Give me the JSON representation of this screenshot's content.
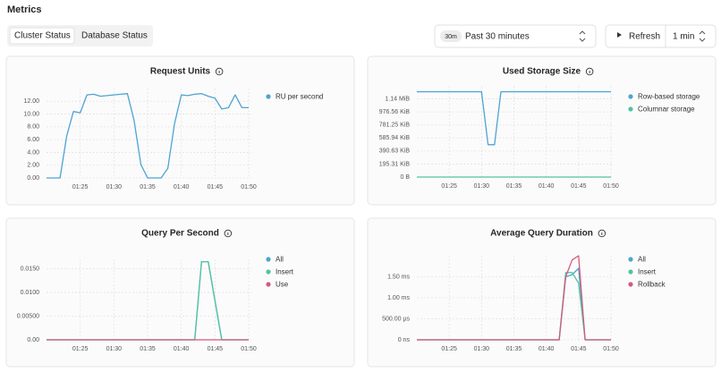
{
  "header": {
    "title": "Metrics"
  },
  "tabs": [
    "Cluster Status",
    "Database Status"
  ],
  "time_range": {
    "badge": "30m",
    "label": "Past 30 minutes"
  },
  "refresh": {
    "label": "Refresh",
    "interval": "1 min"
  },
  "chart_data": [
    {
      "type": "line",
      "title": "Request Units",
      "x": [
        "01:20",
        "01:21",
        "01:22",
        "01:23",
        "01:24",
        "01:25",
        "01:26",
        "01:27",
        "01:28",
        "01:29",
        "01:30",
        "01:31",
        "01:32",
        "01:33",
        "01:34",
        "01:35",
        "01:36",
        "01:37",
        "01:38",
        "01:39",
        "01:40",
        "01:41",
        "01:42",
        "01:43",
        "01:44",
        "01:45",
        "01:46",
        "01:47",
        "01:48",
        "01:49",
        "01:50"
      ],
      "xlim": [
        "01:20",
        "01:50"
      ],
      "xticks": [
        "01:25",
        "01:30",
        "01:35",
        "01:40",
        "01:45",
        "01:50"
      ],
      "ylim": [
        0,
        14
      ],
      "yticks": [
        {
          "value": 0,
          "label": "0.00"
        },
        {
          "value": 2,
          "label": "2.00"
        },
        {
          "value": 4,
          "label": "4.00"
        },
        {
          "value": 6,
          "label": "6.00"
        },
        {
          "value": 8,
          "label": "8.00"
        },
        {
          "value": 10,
          "label": "10.00"
        },
        {
          "value": 12,
          "label": "12.00"
        }
      ],
      "grid": true,
      "series": [
        {
          "name": "RU per second",
          "color": "#4ea3d3",
          "values": [
            0,
            0,
            0,
            6.6,
            10.4,
            10.2,
            13,
            13.1,
            12.8,
            12.9,
            13,
            13.1,
            13.2,
            9,
            2.1,
            0,
            0,
            0,
            1.5,
            8.5,
            13,
            12.9,
            13.1,
            13.2,
            12.8,
            12.5,
            10.8,
            11,
            13,
            11,
            11
          ]
        }
      ]
    },
    {
      "type": "line",
      "title": "Used Storage Size",
      "x": [
        "01:20",
        "01:21",
        "01:22",
        "01:23",
        "01:24",
        "01:25",
        "01:26",
        "01:27",
        "01:28",
        "01:29",
        "01:30",
        "01:31",
        "01:32",
        "01:33",
        "01:34",
        "01:35",
        "01:36",
        "01:37",
        "01:38",
        "01:39",
        "01:40",
        "01:41",
        "01:42",
        "01:43",
        "01:44",
        "01:45",
        "01:46",
        "01:47",
        "01:48",
        "01:49",
        "01:50"
      ],
      "xlim": [
        "01:20",
        "01:50"
      ],
      "xticks": [
        "01:25",
        "01:30",
        "01:35",
        "01:40",
        "01:45",
        "01:50"
      ],
      "ylim": [
        0,
        1400000
      ],
      "yticks": [
        {
          "value": 0,
          "label": "0 B"
        },
        {
          "value": 200000,
          "label": "195.31 KiB"
        },
        {
          "value": 400000,
          "label": "390.63 KiB"
        },
        {
          "value": 600000,
          "label": "585.94 KiB"
        },
        {
          "value": 800000,
          "label": "781.25 KiB"
        },
        {
          "value": 1000000,
          "label": "976.56 KiB"
        },
        {
          "value": 1200000,
          "label": "1.14 MiB"
        }
      ],
      "grid": true,
      "series": [
        {
          "name": "Row-based storage",
          "color": "#4ea3d3",
          "values": [
            1310000,
            1310000,
            1310000,
            1310000,
            1310000,
            1310000,
            1310000,
            1310000,
            1310000,
            1310000,
            1310000,
            497000,
            497000,
            1310000,
            1310000,
            1310000,
            1310000,
            1310000,
            1310000,
            1310000,
            1310000,
            1310000,
            1310000,
            1310000,
            1310000,
            1310000,
            1310000,
            1310000,
            1310000,
            1310000,
            1310000
          ]
        },
        {
          "name": "Columnar storage",
          "color": "#52c3a0",
          "values": [
            0,
            0,
            0,
            0,
            0,
            0,
            0,
            0,
            0,
            0,
            0,
            0,
            0,
            0,
            0,
            0,
            0,
            0,
            0,
            0,
            0,
            0,
            0,
            0,
            0,
            0,
            0,
            0,
            0,
            0,
            0
          ]
        }
      ]
    },
    {
      "type": "line",
      "title": "Query Per Second",
      "x": [
        "01:20",
        "01:21",
        "01:22",
        "01:23",
        "01:24",
        "01:25",
        "01:26",
        "01:27",
        "01:28",
        "01:29",
        "01:30",
        "01:31",
        "01:32",
        "01:33",
        "01:34",
        "01:35",
        "01:36",
        "01:37",
        "01:38",
        "01:39",
        "01:40",
        "01:41",
        "01:42",
        "01:43",
        "01:44",
        "01:45",
        "01:46",
        "01:47",
        "01:48",
        "01:49",
        "01:50"
      ],
      "xlim": [
        "01:20",
        "01:50"
      ],
      "xticks": [
        "01:25",
        "01:30",
        "01:35",
        "01:40",
        "01:45",
        "01:50"
      ],
      "ylim": [
        0,
        0.017
      ],
      "yticks": [
        {
          "value": 0,
          "label": "0.00"
        },
        {
          "value": 0.005,
          "label": "0.00500"
        },
        {
          "value": 0.01,
          "label": "0.0100"
        },
        {
          "value": 0.015,
          "label": "0.0150"
        }
      ],
      "grid": true,
      "series": [
        {
          "name": "All",
          "color": "#4ea3d3",
          "values": [
            0,
            0,
            0,
            0,
            0,
            0,
            0,
            0,
            0,
            0,
            0,
            0,
            0,
            0,
            0,
            0,
            0,
            0,
            0,
            0,
            0,
            0,
            0,
            0.0165,
            0.0165,
            0.0083,
            0,
            0,
            0,
            0,
            0
          ]
        },
        {
          "name": "Insert",
          "color": "#52c3a0",
          "values": [
            0,
            0,
            0,
            0,
            0,
            0,
            0,
            0,
            0,
            0,
            0,
            0,
            0,
            0,
            0,
            0,
            0,
            0,
            0,
            0,
            0,
            0,
            0,
            0.0165,
            0.0165,
            0.0083,
            0,
            0,
            0,
            0,
            0
          ]
        },
        {
          "name": "Use",
          "color": "#d45a80",
          "values": [
            0,
            0,
            0,
            0,
            0,
            0,
            0,
            0,
            0,
            0,
            0,
            0,
            0,
            0,
            0,
            0,
            0,
            0,
            0,
            0,
            0,
            0,
            0,
            0,
            0,
            0,
            0,
            0,
            0,
            0,
            0
          ]
        }
      ]
    },
    {
      "type": "line",
      "title": "Average Query Duration",
      "x": [
        "01:20",
        "01:21",
        "01:22",
        "01:23",
        "01:24",
        "01:25",
        "01:26",
        "01:27",
        "01:28",
        "01:29",
        "01:30",
        "01:31",
        "01:32",
        "01:33",
        "01:34",
        "01:35",
        "01:36",
        "01:37",
        "01:38",
        "01:39",
        "01:40",
        "01:41",
        "01:42",
        "01:43",
        "01:44",
        "01:45",
        "01:46",
        "01:47",
        "01:48",
        "01:49",
        "01:50"
      ],
      "xlim": [
        "01:20",
        "01:50"
      ],
      "xticks": [
        "01:25",
        "01:30",
        "01:35",
        "01:40",
        "01:45",
        "01:50"
      ],
      "ylim": [
        0,
        2
      ],
      "yticks": [
        {
          "value": 0,
          "label": "0 ns"
        },
        {
          "value": 0.5,
          "label": "500.00 µs"
        },
        {
          "value": 1,
          "label": "1.00 ms"
        },
        {
          "value": 1.5,
          "label": "1.50 ms"
        }
      ],
      "grid": true,
      "series": [
        {
          "name": "All",
          "color": "#4ea3d3",
          "values": [
            0,
            0,
            0,
            0,
            0,
            0,
            0,
            0,
            0,
            0,
            0,
            0,
            0,
            0,
            0,
            0,
            0,
            0,
            0,
            0,
            0,
            0,
            0,
            1.5,
            1.55,
            1.7,
            0,
            0,
            0,
            0,
            0
          ]
        },
        {
          "name": "Insert",
          "color": "#52c3a0",
          "values": [
            0,
            0,
            0,
            0,
            0,
            0,
            0,
            0,
            0,
            0,
            0,
            0,
            0,
            0,
            0,
            0,
            0,
            0,
            0,
            0,
            0,
            0,
            0,
            1.6,
            1.6,
            1.35,
            0,
            0,
            0,
            0,
            0
          ]
        },
        {
          "name": "Rollback",
          "color": "#d45a80",
          "values": [
            0,
            0,
            0,
            0,
            0,
            0,
            0,
            0,
            0,
            0,
            0,
            0,
            0,
            0,
            0,
            0,
            0,
            0,
            0,
            0,
            0,
            0,
            0,
            1.5,
            1.9,
            2.0,
            0,
            0,
            0,
            0,
            0
          ]
        }
      ]
    }
  ]
}
